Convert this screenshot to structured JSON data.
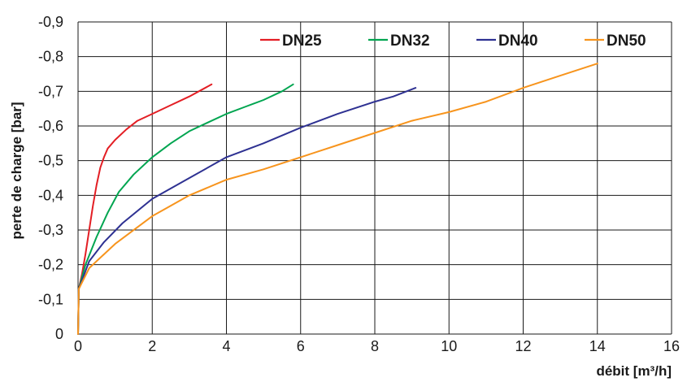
{
  "chart_data": {
    "type": "line",
    "xlabel": "débit [m³/h]",
    "ylabel": "perte de charge [bar]",
    "xlim": [
      0,
      16
    ],
    "ylim": [
      0,
      0.9
    ],
    "x_ticks": [
      "0",
      "2",
      "4",
      "6",
      "8",
      "10",
      "12",
      "14",
      "16"
    ],
    "y_ticks": [
      "0",
      "-0,1",
      "-0,2",
      "-0,3",
      "-0,4",
      "-0,5",
      "-0,6",
      "-0,7",
      "-0,8",
      "-0,9"
    ],
    "grid": true,
    "legend_position": "top",
    "series": [
      {
        "name": "DN25",
        "color": "#e31e24",
        "x": [
          0,
          0.02,
          0.1,
          0.2,
          0.3,
          0.4,
          0.5,
          0.6,
          0.7,
          0.8,
          1.0,
          1.3,
          1.6,
          2.0,
          2.5,
          3.0,
          3.6
        ],
        "y": [
          0,
          0.13,
          0.17,
          0.23,
          0.3,
          0.37,
          0.43,
          0.48,
          0.51,
          0.535,
          0.56,
          0.59,
          0.615,
          0.635,
          0.66,
          0.685,
          0.72
        ]
      },
      {
        "name": "DN32",
        "color": "#00a550",
        "x": [
          0,
          0.02,
          0.2,
          0.5,
          0.8,
          1.1,
          1.5,
          2.0,
          2.5,
          3.0,
          3.5,
          4.0,
          4.5,
          5.0,
          5.5,
          5.8
        ],
        "y": [
          0,
          0.13,
          0.2,
          0.28,
          0.35,
          0.41,
          0.46,
          0.51,
          0.55,
          0.585,
          0.61,
          0.635,
          0.655,
          0.675,
          0.7,
          0.72
        ]
      },
      {
        "name": "DN40",
        "color": "#2e3192",
        "x": [
          0,
          0.02,
          0.3,
          0.7,
          1.2,
          2.0,
          3.0,
          4.0,
          5.0,
          6.0,
          7.0,
          8.0,
          8.5,
          9.1
        ],
        "y": [
          0,
          0.13,
          0.21,
          0.265,
          0.32,
          0.39,
          0.45,
          0.51,
          0.55,
          0.595,
          0.635,
          0.67,
          0.685,
          0.71
        ]
      },
      {
        "name": "DN50",
        "color": "#f7941d",
        "x": [
          0,
          0.02,
          0.3,
          1.0,
          2.0,
          3.0,
          4.0,
          5.0,
          6.0,
          7.0,
          8.0,
          9.0,
          10.0,
          11.0,
          12.0,
          13.0,
          14.0
        ],
        "y": [
          0,
          0.13,
          0.19,
          0.26,
          0.34,
          0.4,
          0.445,
          0.475,
          0.51,
          0.545,
          0.58,
          0.615,
          0.64,
          0.67,
          0.71,
          0.745,
          0.78
        ]
      }
    ]
  }
}
